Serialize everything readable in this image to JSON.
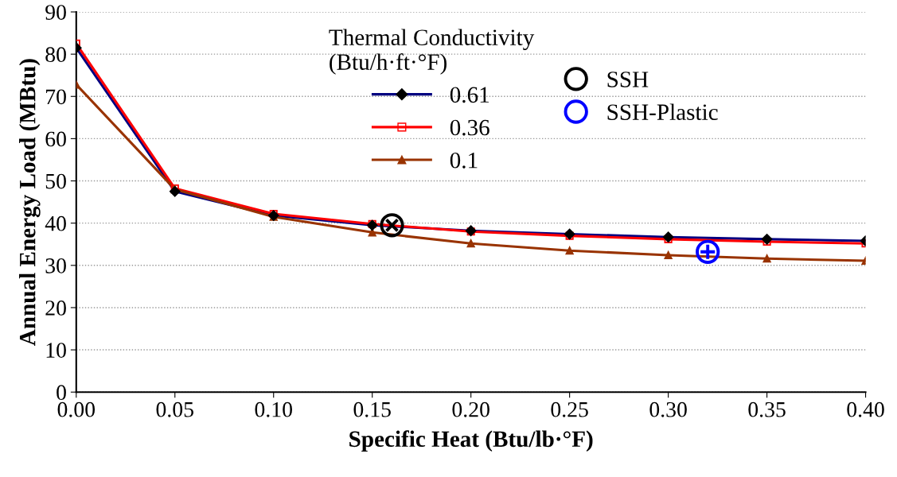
{
  "chart_data": {
    "type": "line",
    "xlabel": "Specific Heat (Btu/lb·°F)",
    "ylabel": "Annual Energy Load (MBtu)",
    "legend_title": "Thermal Conductivity\n(Btu/h·ft·°F)",
    "x": [
      0,
      0.05,
      0.1,
      0.15,
      0.2,
      0.25,
      0.3,
      0.35,
      0.4
    ],
    "series": [
      {
        "name": "0.61",
        "color": "#000080",
        "marker": "diamond",
        "values": [
          81.5,
          47.5,
          41.8,
          39.5,
          38.2,
          37.4,
          36.7,
          36.2,
          35.8
        ]
      },
      {
        "name": "0.36",
        "color": "#ff0000",
        "marker": "square",
        "values": [
          82.5,
          48.2,
          42.2,
          39.8,
          38.0,
          37.0,
          36.2,
          35.6,
          35.2
        ]
      },
      {
        "name": "0.1",
        "color": "#993300",
        "marker": "triangle",
        "values": [
          72.8,
          48.0,
          41.5,
          37.8,
          35.2,
          33.5,
          32.4,
          31.6,
          31.1
        ]
      },
      {
        "name": "SSH",
        "type": "scatter",
        "color": "#000000",
        "marker": "circle",
        "x": [
          0.16
        ],
        "values": [
          39.5
        ]
      },
      {
        "name": "SSH-Plastic",
        "type": "scatter",
        "color": "#0000ff",
        "marker": "circle",
        "x": [
          0.32
        ],
        "values": [
          33.2
        ]
      }
    ],
    "xlim": [
      0,
      0.4
    ],
    "ylim": [
      0,
      90
    ],
    "xticks": [
      {
        "value": 0,
        "label": "0.00"
      },
      {
        "value": 0.05,
        "label": "0.05"
      },
      {
        "value": 0.1,
        "label": "0.10"
      },
      {
        "value": 0.15,
        "label": "0.15"
      },
      {
        "value": 0.2,
        "label": "0.20"
      },
      {
        "value": 0.25,
        "label": "0.25"
      },
      {
        "value": 0.3,
        "label": "0.30"
      },
      {
        "value": 0.35,
        "label": "0.35"
      },
      {
        "value": 0.4,
        "label": "0.40"
      }
    ],
    "yticks": [
      0,
      10,
      20,
      30,
      40,
      50,
      60,
      70,
      80,
      90
    ],
    "grid": "y",
    "legend": "top"
  }
}
